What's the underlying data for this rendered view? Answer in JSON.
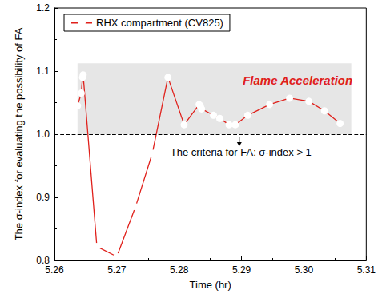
{
  "chart_data": {
    "type": "line",
    "x_label": "Time (hr)",
    "y_label": "The σ-index for evaluating the possibility of FA",
    "series": [
      {
        "name": "RHX compartment (CV825)",
        "color": "#e0201b",
        "marker": "open_circle",
        "x": [
          5.2637,
          5.2643,
          5.2645,
          5.2646,
          5.2668,
          5.27,
          5.273,
          5.2757,
          5.2782,
          5.2808,
          5.2832,
          5.2834,
          5.2836,
          5.2855,
          5.2865,
          5.288,
          5.289,
          5.291,
          5.2945,
          5.2977,
          5.3008,
          5.3033,
          5.3058
        ],
        "values": [
          1.045,
          1.065,
          1.09,
          1.094,
          0.822,
          0.806,
          0.885,
          0.97,
          1.09,
          1.015,
          1.047,
          1.045,
          1.04,
          1.03,
          1.025,
          1.015,
          1.015,
          1.03,
          1.047,
          1.057,
          1.052,
          1.037,
          1.017
        ]
      }
    ],
    "xlim": [
      5.26,
      5.31
    ],
    "xticks": [
      5.26,
      5.27,
      5.28,
      5.29,
      {
        "value": 5.3,
        "label": "5.30"
      },
      5.31
    ],
    "ylim": [
      0.8,
      1.2
    ],
    "yticks": [
      0.8,
      0.9,
      {
        "value": 1,
        "label": "1.0"
      },
      1.1,
      1.2
    ],
    "grid": false,
    "legend": "upper left",
    "shaded_region": {
      "x": [
        5.2637,
        5.3076
      ],
      "y": [
        1,
        1.1125
      ],
      "color": "#e6e6e6"
    },
    "reference_line": {
      "y": 1,
      "line_style": "dashed",
      "color": "#000000"
    },
    "annotations": [
      {
        "text": "Flame Acceleration",
        "x": 5.299,
        "y": 1.085,
        "color": "#e0201b"
      },
      {
        "text": "The criteria for FA: σ-index > 1",
        "x": 5.2786,
        "y": 0.971,
        "color": "#000000"
      }
    ]
  }
}
